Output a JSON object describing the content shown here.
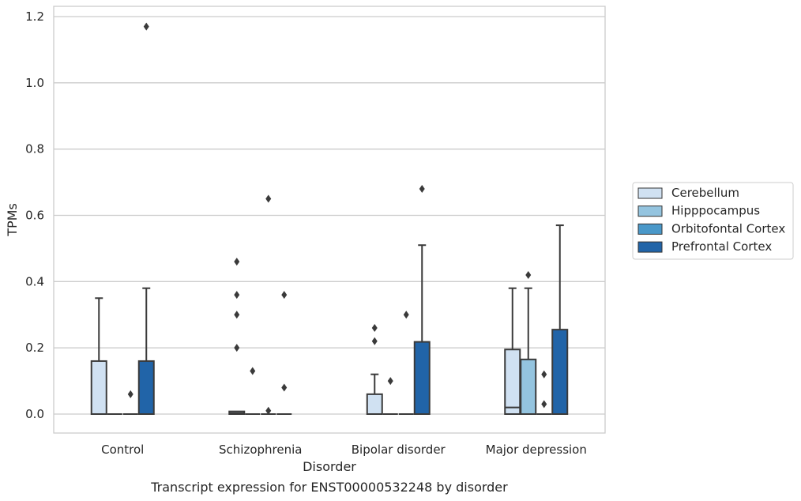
{
  "chart_data": {
    "type": "box",
    "xlabel": "Disorder",
    "ylabel": "TPMs",
    "caption": "Transcript expression for ENST00000532248 by disorder",
    "ylim": [
      -0.058,
      1.23
    ],
    "yticks": [
      0.0,
      0.2,
      0.4,
      0.6,
      0.8,
      1.0,
      1.2
    ],
    "ytick_labels": [
      "0.0",
      "0.2",
      "0.4",
      "0.6",
      "0.8",
      "1.0",
      "1.2"
    ],
    "grid": "horizontal",
    "legend_position": "right",
    "categories": [
      "Control",
      "Schizophrenia",
      "Bipolar disorder",
      "Major depression"
    ],
    "series": [
      {
        "name": "Cerebellum",
        "color": "#d0e1f2",
        "boxes": [
          {
            "q1": 0.0,
            "median": 0.0,
            "q3": 0.16,
            "whisker_low": 0.0,
            "whisker_high": 0.35,
            "outliers": []
          },
          {
            "q1": 0.0,
            "median": 0.003,
            "q3": 0.008,
            "whisker_low": 0.0,
            "whisker_high": 0.008,
            "outliers": [
              0.46,
              0.36,
              0.3,
              0.2
            ]
          },
          {
            "q1": 0.0,
            "median": 0.0,
            "q3": 0.06,
            "whisker_low": 0.0,
            "whisker_high": 0.12,
            "outliers": [
              0.26,
              0.22
            ]
          },
          {
            "q1": 0.0,
            "median": 0.02,
            "q3": 0.195,
            "whisker_low": 0.0,
            "whisker_high": 0.38,
            "outliers": []
          }
        ]
      },
      {
        "name": "Hipppocampus",
        "color": "#94c4df",
        "boxes": [
          {
            "q1": 0.0,
            "median": 0.0,
            "q3": 0.0,
            "whisker_low": 0.0,
            "whisker_high": 0.0,
            "outliers": []
          },
          {
            "q1": 0.0,
            "median": 0.0,
            "q3": 0.0,
            "whisker_low": 0.0,
            "whisker_high": 0.0,
            "outliers": [
              0.13
            ]
          },
          {
            "q1": 0.0,
            "median": 0.0,
            "q3": 0.0,
            "whisker_low": 0.0,
            "whisker_high": 0.0,
            "outliers": [
              0.1
            ]
          },
          {
            "q1": 0.0,
            "median": 0.0,
            "q3": 0.165,
            "whisker_low": 0.0,
            "whisker_high": 0.38,
            "outliers": [
              0.42
            ]
          }
        ]
      },
      {
        "name": "Orbitofontal Cortex",
        "color": "#4a98c9",
        "boxes": [
          {
            "q1": 0.0,
            "median": 0.0,
            "q3": 0.0,
            "whisker_low": 0.0,
            "whisker_high": 0.0,
            "outliers": [
              0.06
            ]
          },
          {
            "q1": 0.0,
            "median": 0.0,
            "q3": 0.0,
            "whisker_low": 0.0,
            "whisker_high": 0.0,
            "outliers": [
              0.65,
              0.01
            ]
          },
          {
            "q1": 0.0,
            "median": 0.0,
            "q3": 0.0,
            "whisker_low": 0.0,
            "whisker_high": 0.0,
            "outliers": [
              0.3
            ]
          },
          {
            "q1": 0.0,
            "median": 0.0,
            "q3": 0.0,
            "whisker_low": 0.0,
            "whisker_high": 0.0,
            "outliers": [
              0.12,
              0.03
            ]
          }
        ]
      },
      {
        "name": "Prefrontal Cortex",
        "color": "#2164a8",
        "boxes": [
          {
            "q1": 0.0,
            "median": 0.0,
            "q3": 0.16,
            "whisker_low": 0.0,
            "whisker_high": 0.38,
            "outliers": [
              1.17
            ]
          },
          {
            "q1": 0.0,
            "median": 0.0,
            "q3": 0.0,
            "whisker_low": 0.0,
            "whisker_high": 0.0,
            "outliers": [
              0.36,
              0.08
            ]
          },
          {
            "q1": 0.0,
            "median": 0.0,
            "q3": 0.218,
            "whisker_low": 0.0,
            "whisker_high": 0.51,
            "outliers": [
              0.68
            ]
          },
          {
            "q1": 0.0,
            "median": 0.0,
            "q3": 0.255,
            "whisker_low": 0.0,
            "whisker_high": 0.57,
            "outliers": []
          }
        ]
      }
    ]
  }
}
